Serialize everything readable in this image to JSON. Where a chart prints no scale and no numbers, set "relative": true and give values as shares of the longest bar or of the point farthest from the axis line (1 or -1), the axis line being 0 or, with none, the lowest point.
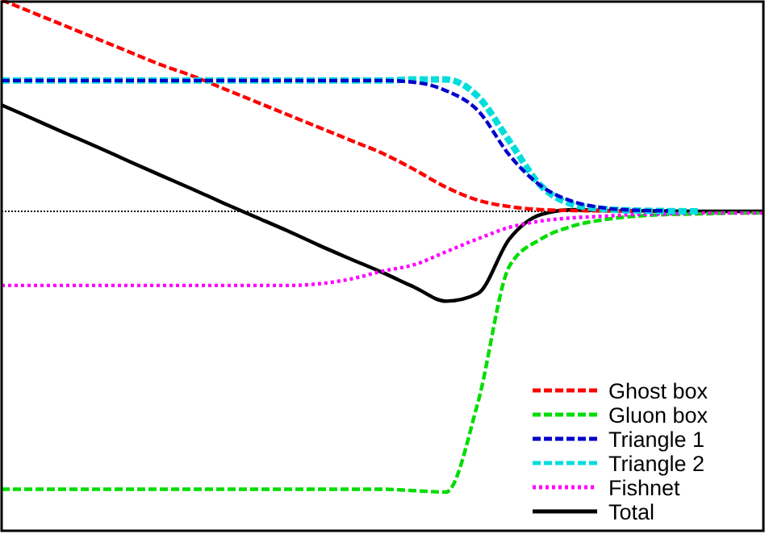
{
  "chart_data": {
    "type": "line",
    "relative": true,
    "legend": "bottom right",
    "ref_lines": [
      {
        "axis": "y",
        "value": 0,
        "color": "#000000",
        "line_style": "dotted"
      }
    ],
    "categories": [
      null,
      null,
      null,
      null,
      null,
      null,
      null,
      null,
      null,
      null,
      null,
      null,
      null,
      null,
      null,
      null,
      null,
      null,
      null,
      null,
      null,
      null,
      null,
      null,
      null
    ],
    "series": [
      {
        "name": "Ghost box",
        "color": "#ff0000",
        "line_style": "dashed",
        "values": [
          0.753,
          0.707,
          0.661,
          0.615,
          0.569,
          0.523,
          0.483,
          0.437,
          0.391,
          0.345,
          0.299,
          0.253,
          0.207,
          0.149,
          0.086,
          0.04,
          0.017,
          0.006,
          0.003,
          0.002,
          0.001,
          null,
          null,
          null,
          null
        ]
      },
      {
        "name": "Gluon box",
        "color": "#00dd00",
        "line_style": "dashed",
        "values": [
          -0.99,
          -0.99,
          -0.99,
          -0.99,
          -0.99,
          -0.99,
          -0.99,
          -0.99,
          -0.99,
          -0.99,
          -0.99,
          -0.99,
          -0.99,
          -0.995,
          -1,
          -0.684,
          -0.195,
          -0.098,
          -0.052,
          -0.029,
          -0.017,
          -0.011,
          -0.009,
          -0.006,
          -0.006
        ]
      },
      {
        "name": "Triangle 1",
        "color": "#0000cc",
        "line_style": "dashed",
        "values": [
          0.466,
          0.466,
          0.466,
          0.466,
          0.466,
          0.466,
          0.466,
          0.466,
          0.466,
          0.466,
          0.466,
          0.466,
          0.466,
          0.46,
          0.43,
          0.36,
          0.2,
          0.09,
          0.035,
          0.012,
          0.004,
          0.002,
          null,
          null,
          null
        ]
      },
      {
        "name": "Triangle 2",
        "color": "#00dddd",
        "line_style": "dashed",
        "values": [
          0.466,
          0.466,
          0.466,
          0.466,
          0.466,
          0.466,
          0.466,
          0.466,
          0.466,
          0.466,
          0.466,
          0.466,
          0.466,
          0.47,
          0.47,
          0.41,
          0.25,
          0.09,
          0.025,
          0.008,
          0.003,
          0.001,
          0,
          null,
          null
        ]
      },
      {
        "name": "Fishnet",
        "color": "#ff00ff",
        "line_style": "dotted",
        "values": [
          -0.264,
          -0.264,
          -0.264,
          -0.264,
          -0.264,
          -0.264,
          -0.264,
          -0.264,
          -0.264,
          -0.264,
          -0.258,
          -0.241,
          -0.213,
          -0.19,
          -0.144,
          -0.098,
          -0.057,
          -0.034,
          -0.023,
          -0.017,
          -0.011,
          -0.009,
          -0.006,
          -0.006,
          -0.006
        ]
      },
      {
        "name": "Total",
        "color": "#000000",
        "line_style": "solid",
        "values": [
          0.379,
          0.329,
          0.279,
          0.23,
          0.179,
          0.129,
          0.08,
          0.029,
          -0.02,
          -0.069,
          -0.121,
          -0.17,
          -0.218,
          -0.27,
          -0.32,
          -0.293,
          -0.098,
          -0.011,
          0.006,
          0.003,
          0.002,
          0.001,
          0,
          0,
          0
        ]
      }
    ]
  }
}
